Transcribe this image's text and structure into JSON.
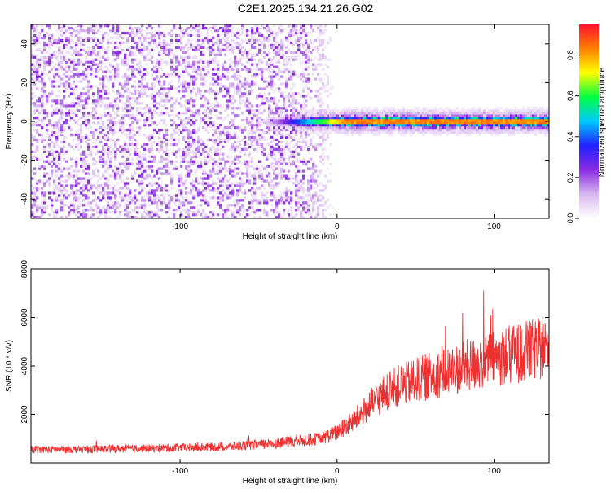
{
  "figure": {
    "title": "C2E1.2025.134.21.26.G02"
  },
  "chart_data": [
    {
      "type": "heatmap",
      "title": "C2E1.2025.134.21.26.G02",
      "xlabel": "Height of straight line (km)",
      "ylabel": "Frequency (Hz)",
      "xlim": [
        -195,
        135
      ],
      "ylim": [
        -50,
        50
      ],
      "xticks": [
        -100,
        0,
        100
      ],
      "xtick_labels": [
        "-100",
        "0",
        "100"
      ],
      "yticks": [
        -40,
        -20,
        0,
        20,
        40
      ],
      "ytick_labels": [
        "-40",
        "-20",
        "0",
        "20",
        "40"
      ],
      "colorbar": {
        "label": "Normalized spectral amplitude",
        "range": [
          0,
          0.95
        ],
        "ticks": [
          0.0,
          0.2,
          0.4,
          0.6,
          0.8
        ],
        "tick_labels": [
          "0.0",
          "0.2",
          "0.4",
          "0.6",
          "0.8"
        ],
        "colormap": [
          "#ffffff",
          "#d8b8f0",
          "#8a2be2",
          "#2020ff",
          "#00c8ff",
          "#00ff40",
          "#ffff00",
          "#ff8000",
          "#ff1030"
        ]
      },
      "description_values": {
        "noise_region_x": [
          -195,
          -20
        ],
        "noise_amplitude": 0.25,
        "signal_start_x": -50,
        "signal_frequency": 0,
        "signal_peak_amplitude": 0.9
      }
    },
    {
      "type": "line",
      "xlabel": "Height of straight line (km)",
      "ylabel": "SNR (10 * v/v)",
      "xlim": [
        -195,
        135
      ],
      "ylim": [
        0,
        8000
      ],
      "xticks": [
        -100,
        0,
        100
      ],
      "xtick_labels": [
        "-100",
        "0",
        "100"
      ],
      "yticks": [
        2000,
        4000,
        6000,
        8000
      ],
      "ytick_labels": [
        "2000",
        "4000",
        "6000",
        "8000"
      ],
      "series": [
        {
          "name": "SNR",
          "color": "#ef3030",
          "trend": {
            "x": [
              -195,
              -160,
              -120,
              -80,
              -60,
              -40,
              -20,
              -10,
              0,
              10,
              20,
              30,
              40,
              60,
              80,
              100,
              120,
              135
            ],
            "y": [
              550,
              560,
              600,
              650,
              700,
              800,
              950,
              1000,
              1250,
              1700,
              2300,
              2850,
              3200,
              3600,
              3950,
              4300,
              4600,
              4750
            ]
          }
        }
      ]
    }
  ]
}
